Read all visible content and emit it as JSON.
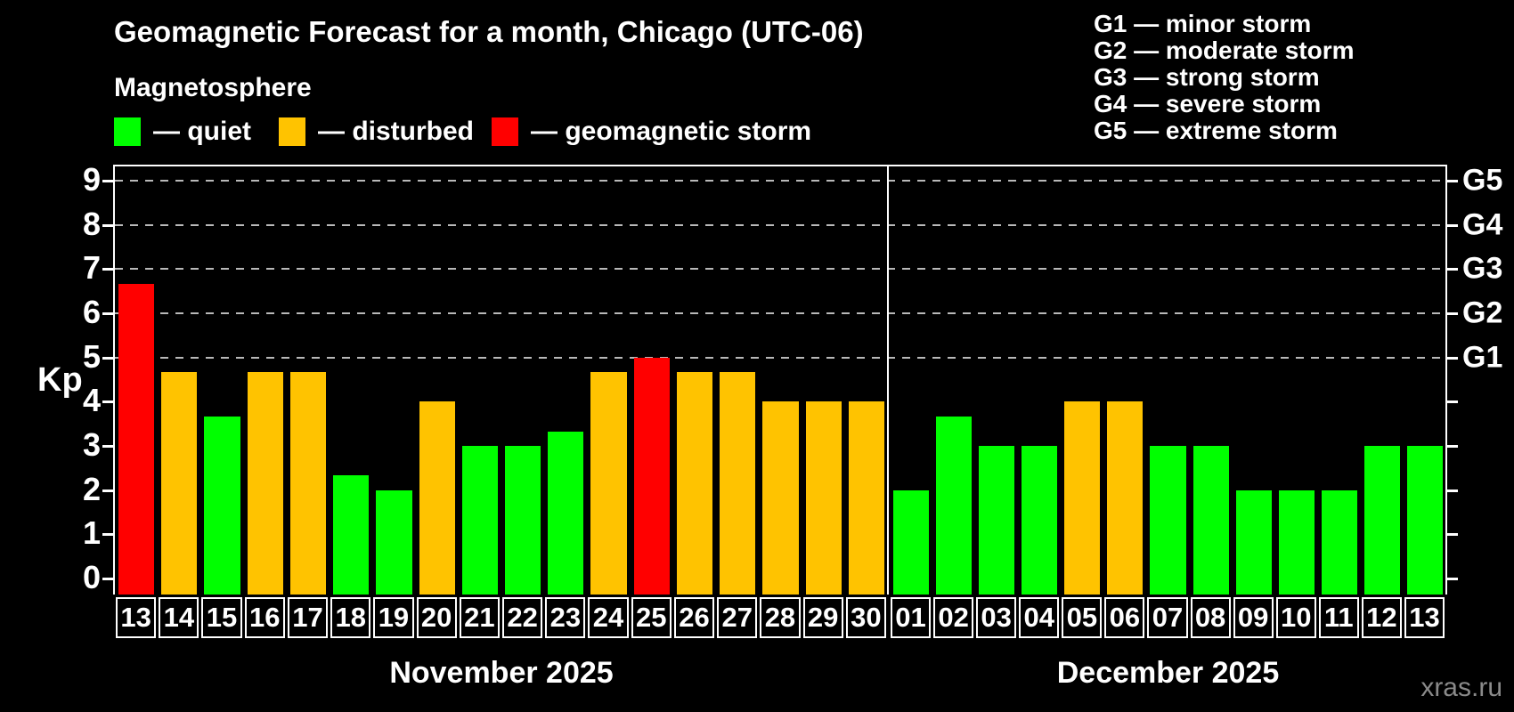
{
  "title": "Geomagnetic Forecast for a month, Chicago (UTC-06)",
  "legend": {
    "heading": "Magnetosphere",
    "items": [
      {
        "key": "quiet",
        "label": "— quiet",
        "color": "#00ff00"
      },
      {
        "key": "disturbed",
        "label": "— disturbed",
        "color": "#ffc300"
      },
      {
        "key": "storm",
        "label": "— geomagnetic storm",
        "color": "#ff0000"
      }
    ]
  },
  "g_legend": [
    "G1 — minor storm",
    "G2 — moderate storm",
    "G3 — strong storm",
    "G4 — severe storm",
    "G5 — extreme storm"
  ],
  "axis": {
    "y_label": "Kp",
    "y_ticks": [
      0,
      1,
      2,
      3,
      4,
      5,
      6,
      7,
      8,
      9
    ],
    "right_ticks": [
      {
        "kp": 5,
        "label": "G1"
      },
      {
        "kp": 6,
        "label": "G2"
      },
      {
        "kp": 7,
        "label": "G3"
      },
      {
        "kp": 8,
        "label": "G4"
      },
      {
        "kp": 9,
        "label": "G5"
      }
    ]
  },
  "months": [
    {
      "label": "November 2025",
      "days": [
        "13",
        "14",
        "15",
        "16",
        "17",
        "18",
        "19",
        "20",
        "21",
        "22",
        "23",
        "24",
        "25",
        "26",
        "27",
        "28",
        "29",
        "30"
      ]
    },
    {
      "label": "December 2025",
      "days": [
        "01",
        "02",
        "03",
        "04",
        "05",
        "06",
        "07",
        "08",
        "09",
        "10",
        "11",
        "12",
        "13"
      ]
    }
  ],
  "colors": {
    "quiet": "#00ff00",
    "disturbed": "#ffc300",
    "storm": "#ff0000",
    "gridline": "#b9b9b9",
    "frame": "#ffffff"
  },
  "watermark": "xras.ru",
  "chart_data": {
    "type": "bar",
    "title": "Geomagnetic Forecast for a month, Chicago (UTC-06)",
    "subtitle": "Magnetosphere",
    "xlabel": "",
    "ylabel": "Kp",
    "ylim": [
      0,
      9.4
    ],
    "grid": "horizontal dashed lines at Kp 5,6,7,8,9 (G1-G5)",
    "legend_position": "top-left states, top-right G scale",
    "categories": [
      "Nov 13",
      "Nov 14",
      "Nov 15",
      "Nov 16",
      "Nov 17",
      "Nov 18",
      "Nov 19",
      "Nov 20",
      "Nov 21",
      "Nov 22",
      "Nov 23",
      "Nov 24",
      "Nov 25",
      "Nov 26",
      "Nov 27",
      "Nov 28",
      "Nov 29",
      "Nov 30",
      "Dec 01",
      "Dec 02",
      "Dec 03",
      "Dec 04",
      "Dec 05",
      "Dec 06",
      "Dec 07",
      "Dec 08",
      "Dec 09",
      "Dec 10",
      "Dec 11",
      "Dec 12",
      "Dec 13"
    ],
    "values": [
      6.67,
      4.67,
      3.67,
      4.67,
      4.67,
      2.33,
      2,
      4,
      3,
      3,
      3.33,
      4.67,
      5,
      4.67,
      4.67,
      4,
      4,
      4,
      2,
      3.67,
      3,
      3,
      4,
      4,
      3,
      3,
      2,
      2,
      2,
      3,
      3
    ],
    "states": [
      "storm",
      "disturbed",
      "quiet",
      "disturbed",
      "disturbed",
      "quiet",
      "quiet",
      "disturbed",
      "quiet",
      "quiet",
      "quiet",
      "disturbed",
      "storm",
      "disturbed",
      "disturbed",
      "disturbed",
      "disturbed",
      "disturbed",
      "quiet",
      "quiet",
      "quiet",
      "quiet",
      "disturbed",
      "disturbed",
      "quiet",
      "quiet",
      "quiet",
      "quiet",
      "quiet",
      "quiet",
      "quiet"
    ]
  }
}
